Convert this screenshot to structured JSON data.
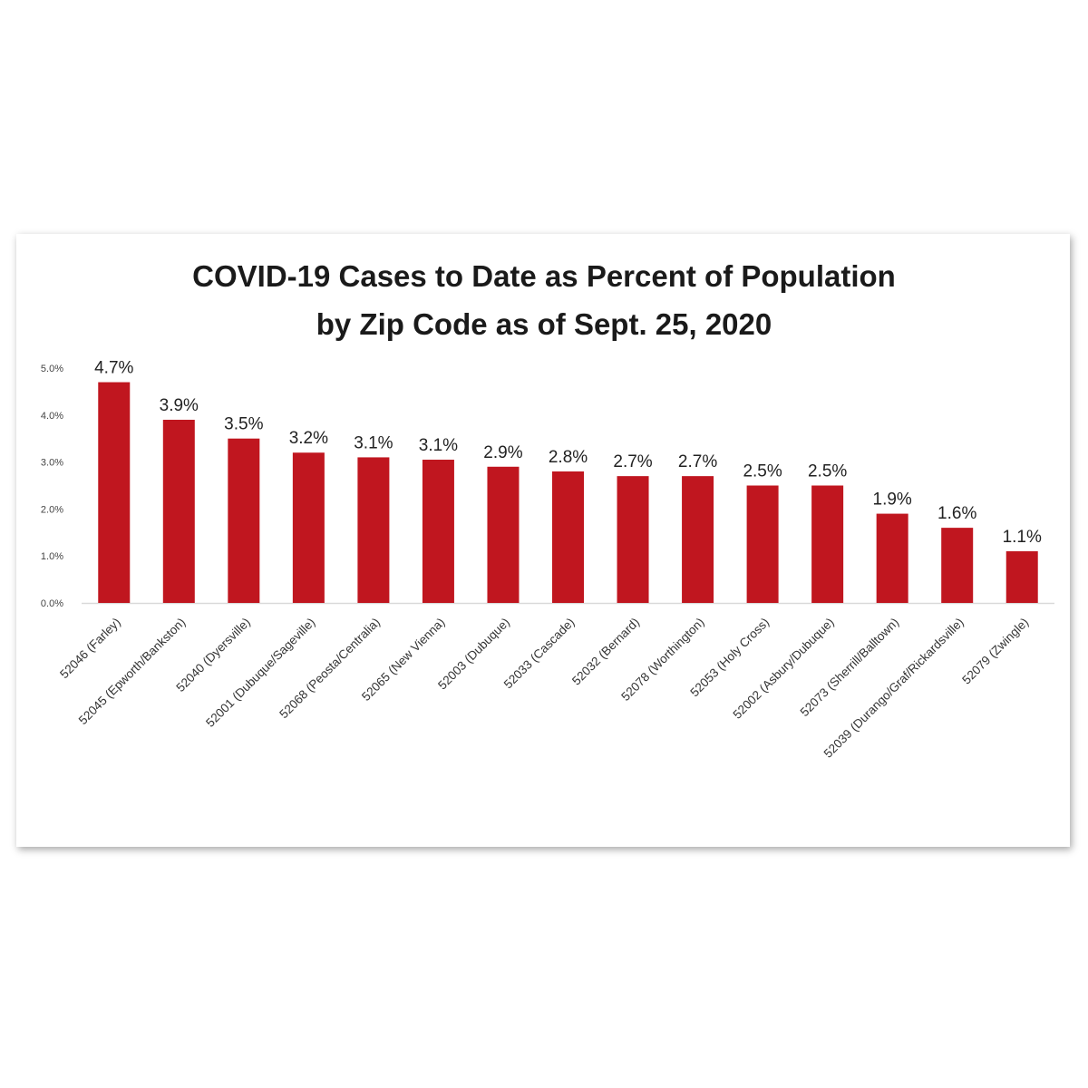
{
  "chart_data": {
    "type": "bar",
    "title_lines": [
      "COVID-19 Cases to Date as Percent of Population",
      "by Zip Code as of Sept. 25, 2020"
    ],
    "xlabel": "",
    "ylabel": "",
    "ylim": [
      0,
      5
    ],
    "y_ticks": [
      {
        "value": 0,
        "label": "0.0%"
      },
      {
        "value": 1,
        "label": "1.0%"
      },
      {
        "value": 2,
        "label": "2.0%"
      },
      {
        "value": 3,
        "label": "3.0%"
      },
      {
        "value": 4,
        "label": "4.0%"
      },
      {
        "value": 5,
        "label": "5.0%"
      }
    ],
    "grid": false,
    "bar_color": "#c0161f",
    "categories": [
      "52046 (Farley)",
      "52045 (Epworth/Bankston)",
      "52040 (Dyersville)",
      "52001 (Dubuque/Sageville)",
      "52068 (Peosta/Centralia)",
      "52065 (New Vienna)",
      "52003 (Dubuque)",
      "52033 (Cascade)",
      "52032 (Bernard)",
      "52078 (Worthington)",
      "52053 (Holy Cross)",
      "52002 (Asbury/Dubuque)",
      "52073 (Sherrill/Balltown)",
      "52039 (Durango/Graf/Rickardsville)",
      "52079 (Zwingle)"
    ],
    "values": [
      4.7,
      3.9,
      3.5,
      3.2,
      3.1,
      3.05,
      2.9,
      2.8,
      2.7,
      2.7,
      2.5,
      2.5,
      1.9,
      1.6,
      1.1
    ],
    "value_labels": [
      "4.7%",
      "3.9%",
      "3.5%",
      "3.2%",
      "3.1%",
      "3.1%",
      "2.9%",
      "2.8%",
      "2.7%",
      "2.7%",
      "2.5%",
      "2.5%",
      "1.9%",
      "1.6%",
      "1.1%"
    ]
  }
}
